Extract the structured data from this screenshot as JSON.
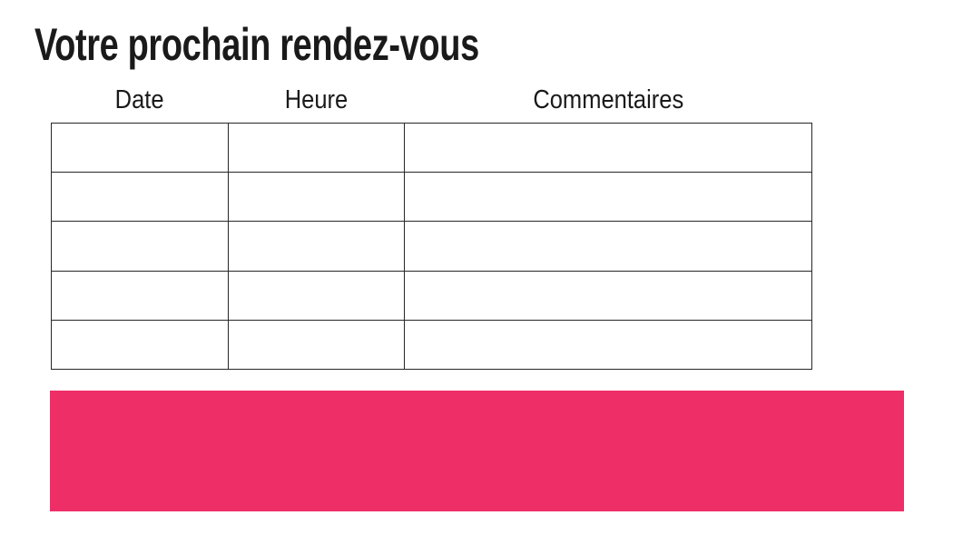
{
  "page": {
    "title": "Votre prochain rendez-vous"
  },
  "table": {
    "columns": [
      {
        "label": "Date"
      },
      {
        "label": "Heure"
      },
      {
        "label": "Commentaires"
      }
    ],
    "row_count": 5,
    "rows": [
      [
        "",
        "",
        ""
      ],
      [
        "",
        "",
        ""
      ],
      [
        "",
        "",
        ""
      ],
      [
        "",
        "",
        ""
      ],
      [
        "",
        "",
        ""
      ]
    ]
  },
  "colors": {
    "accent_pink": "#ED2E67",
    "text_black": "#1A1A1A",
    "table_border": "#272727"
  }
}
